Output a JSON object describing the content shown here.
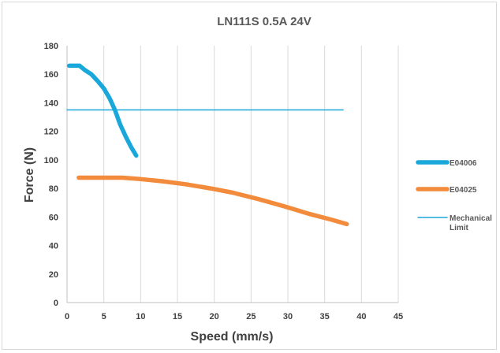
{
  "chart_data": {
    "type": "line",
    "title": "LN111S  0.5A  24V",
    "xlabel": "Speed (mm/s)",
    "ylabel": "Force (N)",
    "xlim": [
      0,
      45
    ],
    "ylim": [
      0,
      180
    ],
    "xticks": [
      0,
      5,
      10,
      15,
      20,
      25,
      30,
      35,
      40,
      45
    ],
    "yticks": [
      0,
      20,
      40,
      60,
      80,
      100,
      120,
      140,
      160,
      180
    ],
    "grid": "vertical",
    "legend_position": "right",
    "series": [
      {
        "name": "E04006",
        "color": "#1aa7d9",
        "width": "thick",
        "points": [
          [
            0.3,
            166
          ],
          [
            1.7,
            166
          ],
          [
            2.4,
            163
          ],
          [
            3.3,
            160
          ],
          [
            4.2,
            155
          ],
          [
            5.0,
            150
          ],
          [
            5.8,
            143
          ],
          [
            6.5,
            135
          ],
          [
            7.2,
            125
          ],
          [
            8.0,
            116
          ],
          [
            8.7,
            109
          ],
          [
            9.4,
            103
          ]
        ]
      },
      {
        "name": "E04025",
        "color": "#f28b3c",
        "width": "thick",
        "points": [
          [
            1.6,
            87.5
          ],
          [
            4,
            87.5
          ],
          [
            7.5,
            87.5
          ],
          [
            10,
            86.5
          ],
          [
            13,
            85
          ],
          [
            16,
            83
          ],
          [
            19.5,
            80
          ],
          [
            22.5,
            77
          ],
          [
            26,
            72.5
          ],
          [
            29.5,
            67.5
          ],
          [
            33,
            62
          ],
          [
            36,
            58
          ],
          [
            38,
            55
          ]
        ]
      },
      {
        "name": "Mechanical Limit",
        "color": "#1aa7d9",
        "width": "thin",
        "points": [
          [
            0,
            135
          ],
          [
            37.5,
            135
          ]
        ]
      }
    ]
  }
}
